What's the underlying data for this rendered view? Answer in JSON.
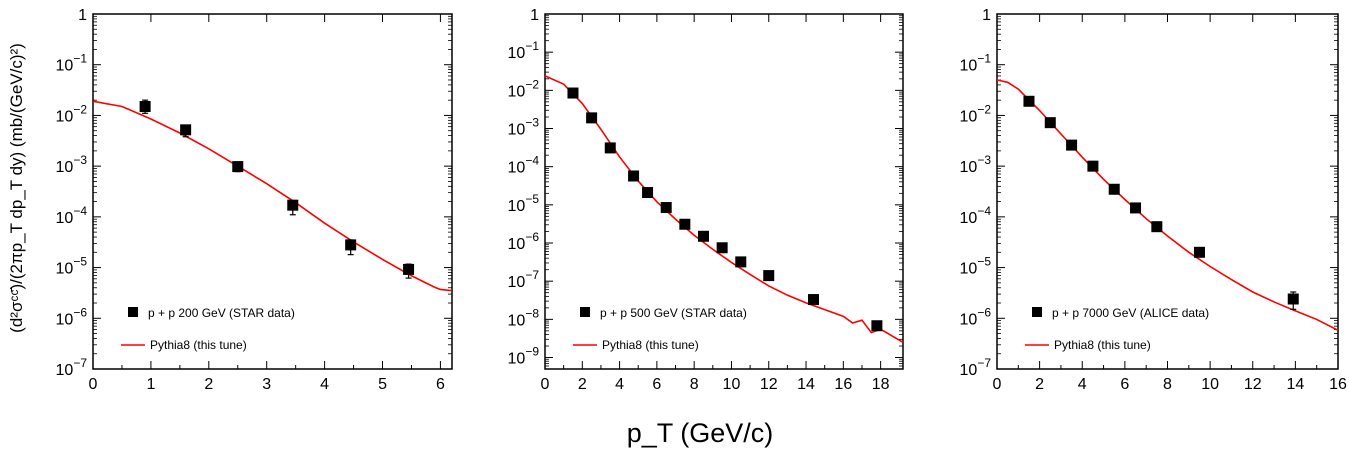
{
  "figure": {
    "ylabel": "(d²σᶜᶜ̄)/(2πp_T dp_T dy) (mb/(GeV/c)²)",
    "xlabel": "p_T (GeV/c)"
  },
  "colors": {
    "data": "#000000",
    "theory": "#ff0000",
    "frame": "#000000"
  },
  "chart_data": [
    {
      "type": "scatter",
      "xlim": [
        0,
        6.2
      ],
      "ylim": [
        1e-07,
        1
      ],
      "yscale": "log",
      "grid": false,
      "legend_position": "bottom-left",
      "xticks": [
        0,
        1,
        2,
        3,
        4,
        5,
        6
      ],
      "xtick_labels": [
        "0",
        "1",
        "2",
        "3",
        "4",
        "5",
        "6"
      ],
      "yticks": [
        1e-07,
        1e-06,
        1e-05,
        0.0001,
        0.001,
        0.01,
        0.1,
        1
      ],
      "ytick_labels": [
        {
          "base": "10",
          "exp": "−7"
        },
        {
          "base": "10",
          "exp": "−6"
        },
        {
          "base": "10",
          "exp": "−5"
        },
        {
          "base": "10",
          "exp": "−4"
        },
        {
          "base": "10",
          "exp": "−3"
        },
        {
          "base": "10",
          "exp": "−2"
        },
        {
          "base": "10",
          "exp": "−1"
        },
        {
          "base": "1",
          "exp": ""
        }
      ],
      "series": [
        {
          "name": "p + p 200 GeV (STAR data)",
          "kind": "points",
          "x": [
            0.9,
            1.6,
            2.5,
            3.45,
            4.45,
            5.45
          ],
          "y": [
            0.015,
            0.0052,
            0.00098,
            0.00017,
            2.8e-05,
            9.2e-06
          ],
          "yerr_low": [
            0.004,
            0.0014,
            0.0002,
            6e-05,
            1e-05,
            3e-06
          ],
          "yerr_high": [
            0.005,
            0.0012,
            0.00022,
            4e-05,
            7e-06,
            2.5e-06
          ]
        },
        {
          "name": "Pythia8 (this tune)",
          "kind": "line",
          "x": [
            0,
            0.5,
            1,
            1.5,
            2,
            2.5,
            3,
            3.5,
            4,
            4.5,
            5,
            5.5,
            5.9,
            6,
            6.2
          ],
          "y": [
            0.019,
            0.015,
            0.0085,
            0.0045,
            0.0022,
            0.001,
            0.00045,
            0.00019,
            7.5e-05,
            3.2e-05,
            1.45e-05,
            6.9e-06,
            4.1e-06,
            3.7e-06,
            3.5e-06
          ]
        }
      ]
    },
    {
      "type": "scatter",
      "xlim": [
        0,
        19.2
      ],
      "ylim": [
        5e-10,
        1
      ],
      "yscale": "log",
      "grid": false,
      "legend_position": "bottom-left",
      "xticks": [
        0,
        2,
        4,
        6,
        8,
        10,
        12,
        14,
        16,
        18
      ],
      "xtick_labels": [
        "0",
        "2",
        "4",
        "6",
        "8",
        "10",
        "12",
        "14",
        "16",
        "18"
      ],
      "yticks": [
        1e-09,
        1e-08,
        1e-07,
        1e-06,
        1e-05,
        0.0001,
        0.001,
        0.01,
        0.1,
        1
      ],
      "ytick_labels": [
        {
          "base": "10",
          "exp": "−9"
        },
        {
          "base": "10",
          "exp": "−8"
        },
        {
          "base": "10",
          "exp": "−7"
        },
        {
          "base": "10",
          "exp": "−6"
        },
        {
          "base": "10",
          "exp": "−5"
        },
        {
          "base": "10",
          "exp": "−4"
        },
        {
          "base": "10",
          "exp": "−3"
        },
        {
          "base": "10",
          "exp": "−2"
        },
        {
          "base": "10",
          "exp": "−1"
        },
        {
          "base": "1",
          "exp": ""
        }
      ],
      "series": [
        {
          "name": "p + p 500 GeV (STAR data)",
          "kind": "points",
          "x": [
            1.5,
            2.5,
            3.5,
            4.75,
            5.5,
            6.5,
            7.5,
            8.5,
            9.5,
            10.5,
            12,
            14.4,
            17.8
          ],
          "y": [
            0.0085,
            0.0019,
            0.00031,
            5.7e-05,
            2.1e-05,
            8.5e-06,
            3.1e-06,
            1.5e-06,
            7.5e-07,
            3.2e-07,
            1.4e-07,
            3.3e-08,
            6.8e-09
          ],
          "yerr_low": [
            0.0006,
            0.0002,
            3e-05,
            5e-06,
            2e-06,
            8e-07,
            3e-07,
            1.5e-07,
            8e-08,
            4e-08,
            2e-08,
            5e-09,
            1e-09
          ],
          "yerr_high": [
            0.0006,
            0.0002,
            3e-05,
            5e-06,
            2e-06,
            8e-07,
            3e-07,
            1.5e-07,
            8e-08,
            4e-08,
            2e-08,
            5e-09,
            1e-09
          ]
        },
        {
          "name": "Pythia8 (this tune)",
          "kind": "line",
          "x": [
            0,
            1,
            2,
            3,
            4,
            5,
            6,
            7,
            8,
            9,
            10,
            11,
            12,
            13,
            14,
            15,
            16,
            16.5,
            17,
            17.5,
            18,
            19.2
          ],
          "y": [
            0.024,
            0.0145,
            0.0045,
            0.00095,
            0.00018,
            4.2e-05,
            1.2e-05,
            4.2e-06,
            1.6e-06,
            6.8e-07,
            3.1e-07,
            1.5e-07,
            7.5e-08,
            4.3e-08,
            2.7e-08,
            1.8e-08,
            1.2e-08,
            8e-09,
            9.5e-09,
            4.5e-09,
            5.5e-09,
            2.5e-09
          ]
        }
      ]
    },
    {
      "type": "scatter",
      "xlim": [
        0,
        16
      ],
      "ylim": [
        1e-07,
        1
      ],
      "yscale": "log",
      "grid": false,
      "legend_position": "bottom-left",
      "xticks": [
        0,
        2,
        4,
        6,
        8,
        10,
        12,
        14,
        16
      ],
      "xtick_labels": [
        "0",
        "2",
        "4",
        "6",
        "8",
        "10",
        "12",
        "14",
        "16"
      ],
      "yticks": [
        1e-07,
        1e-06,
        1e-05,
        0.0001,
        0.001,
        0.01,
        0.1,
        1
      ],
      "ytick_labels": [
        {
          "base": "10",
          "exp": "−7"
        },
        {
          "base": "10",
          "exp": "−6"
        },
        {
          "base": "10",
          "exp": "−5"
        },
        {
          "base": "10",
          "exp": "−4"
        },
        {
          "base": "10",
          "exp": "−3"
        },
        {
          "base": "10",
          "exp": "−2"
        },
        {
          "base": "10",
          "exp": "−1"
        },
        {
          "base": "1",
          "exp": ""
        }
      ],
      "series": [
        {
          "name": "p + p 7000 GeV (ALICE data)",
          "kind": "points",
          "x": [
            1.5,
            2.5,
            3.5,
            4.5,
            5.5,
            6.5,
            7.5,
            9.5,
            13.9
          ],
          "y": [
            0.019,
            0.0072,
            0.0026,
            0.001,
            0.00035,
            0.00015,
            6.4e-05,
            2e-05,
            2.4e-06
          ],
          "yerr_low": [
            0.002,
            0.0007,
            0.0003,
            0.0001,
            4e-05,
            2e-05,
            7e-06,
            3e-06,
            9e-07
          ],
          "yerr_high": [
            0.002,
            0.0007,
            0.0003,
            0.0001,
            4e-05,
            2e-05,
            7e-06,
            3e-06,
            9e-07
          ]
        },
        {
          "name": "Pythia8 (this tune)",
          "kind": "line",
          "x": [
            0,
            0.5,
            1,
            2,
            3,
            4,
            5,
            6,
            7,
            8,
            9,
            10,
            11,
            12,
            13,
            14,
            15,
            16
          ],
          "y": [
            0.05,
            0.045,
            0.033,
            0.0125,
            0.0043,
            0.0015,
            0.00055,
            0.00022,
            9.2e-05,
            4.2e-05,
            2e-05,
            1.05e-05,
            5.8e-06,
            3.3e-06,
            2.1e-06,
            1.4e-06,
            9.5e-07,
            5.8e-07
          ]
        }
      ]
    }
  ]
}
